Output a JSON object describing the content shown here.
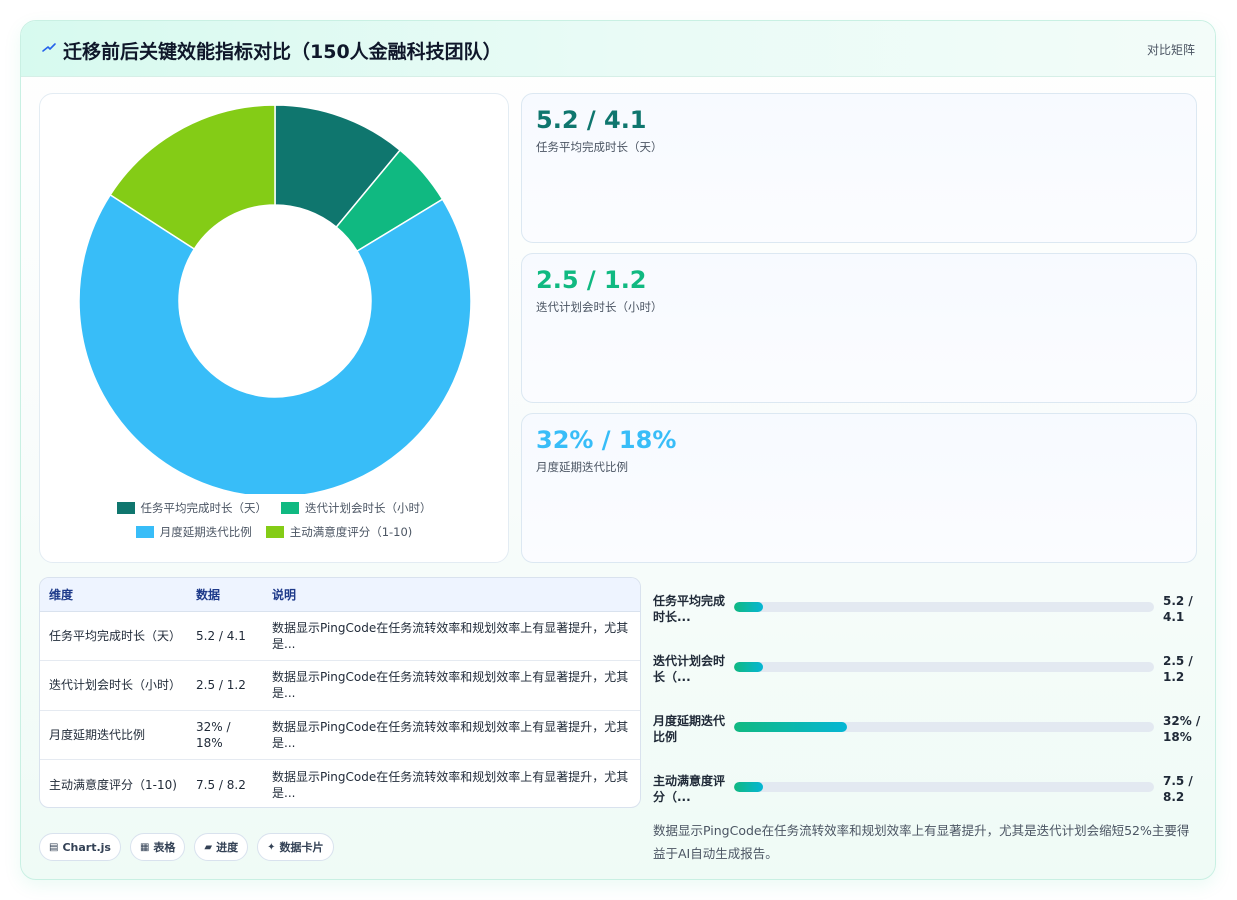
{
  "header": {
    "title": "迁移前后关键效能指标对比（150人金融科技团队）",
    "mode_label": "对比矩阵",
    "icon": "lightning-icon"
  },
  "colors": {
    "series": [
      "#0f766e",
      "#10b981",
      "#38bdf8",
      "#84cc16"
    ],
    "accent": "#10b981"
  },
  "chart_data": {
    "type": "pie",
    "variant": "donut",
    "labels": [
      "任务平均完成时长（天）",
      "迭代计划会时长（小时）",
      "月度延期迭代比例",
      "主动满意度评分（1-10)"
    ],
    "values": [
      5.2,
      2.5,
      32,
      7.5
    ],
    "legend_position": "bottom"
  },
  "stats": [
    {
      "value": "5.2 / 4.1",
      "label": "任务平均完成时长（天）"
    },
    {
      "value": "2.5 / 1.2",
      "label": "迭代计划会时长（小时）"
    },
    {
      "value": "32% / 18%",
      "label": "月度延期迭代比例"
    }
  ],
  "table": {
    "headers": [
      "维度",
      "数据",
      "说明"
    ],
    "rows": [
      {
        "dimension": "任务平均完成时长（天）",
        "data": "5.2 / 4.1",
        "desc": "数据显示PingCode在任务流转效率和规划效率上有显著提升，尤其是..."
      },
      {
        "dimension": "迭代计划会时长（小时）",
        "data": "2.5 / 1.2",
        "desc": "数据显示PingCode在任务流转效率和规划效率上有显著提升，尤其是..."
      },
      {
        "dimension": "月度延期迭代比例",
        "data": "32% / 18%",
        "desc": "数据显示PingCode在任务流转效率和规划效率上有显著提升，尤其是..."
      },
      {
        "dimension": "主动满意度评分（1-10)",
        "data": "7.5 / 8.2",
        "desc": "数据显示PingCode在任务流转效率和规划效率上有显著提升，尤其是..."
      }
    ]
  },
  "bars": [
    {
      "label": "任务平均完成时长...",
      "value": "5.2 / 4.1",
      "progress": 0.07
    },
    {
      "label": "迭代计划会时长（...",
      "value": "2.5 / 1.2",
      "progress": 0.07
    },
    {
      "label": "月度延期迭代比例",
      "value": "32% / 18%",
      "progress": 0.27
    },
    {
      "label": "主动满意度评分（...",
      "value": "7.5 / 8.2",
      "progress": 0.07
    }
  ],
  "chips": [
    {
      "icon": "▤",
      "label": "Chart.js"
    },
    {
      "icon": "▦",
      "label": "表格"
    },
    {
      "icon": "▰",
      "label": "进度"
    },
    {
      "icon": "✦",
      "label": "数据卡片"
    }
  ],
  "summary": "数据显示PingCode在任务流转效率和规划效率上有显著提升，尤其是迭代计划会缩短52%主要得益于AI自动生成报告。"
}
